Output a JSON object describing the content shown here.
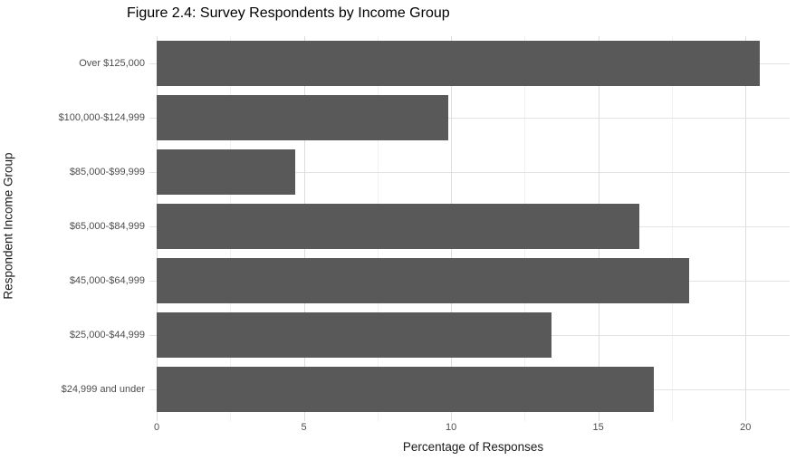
{
  "figure": {
    "title": "Figure 2.4: Survey Respondents by Income Group"
  },
  "chart_data": {
    "type": "bar",
    "orientation": "horizontal",
    "title": "Figure 2.4: Survey Respondents by Income Group",
    "xlabel": "Percentage of Responses",
    "ylabel": "Respondent Income Group",
    "categories": [
      "Over $125,000",
      "$100,000-$124,999",
      "$85,000-$99,999",
      "$65,000-$84,999",
      "$45,000-$64,999",
      "$25,000-$44,999",
      "$24,999 and under"
    ],
    "values": [
      20.5,
      9.9,
      4.7,
      16.4,
      18.1,
      13.4,
      16.9
    ],
    "xlim": [
      0,
      21.5
    ],
    "x_major_ticks": [
      0,
      5,
      10,
      15,
      20
    ],
    "x_minor_ticks": [
      2.5,
      7.5,
      12.5,
      17.5
    ],
    "grid": true,
    "legend": false,
    "colors": {
      "bar_fill": "#595959",
      "major_grid": "#dcdcdc",
      "minor_grid": "#f0f0f0",
      "tick_label": "#4d4d4d",
      "axis_title": "#1a1a1a",
      "title": "#000000",
      "background": "#ffffff"
    }
  }
}
